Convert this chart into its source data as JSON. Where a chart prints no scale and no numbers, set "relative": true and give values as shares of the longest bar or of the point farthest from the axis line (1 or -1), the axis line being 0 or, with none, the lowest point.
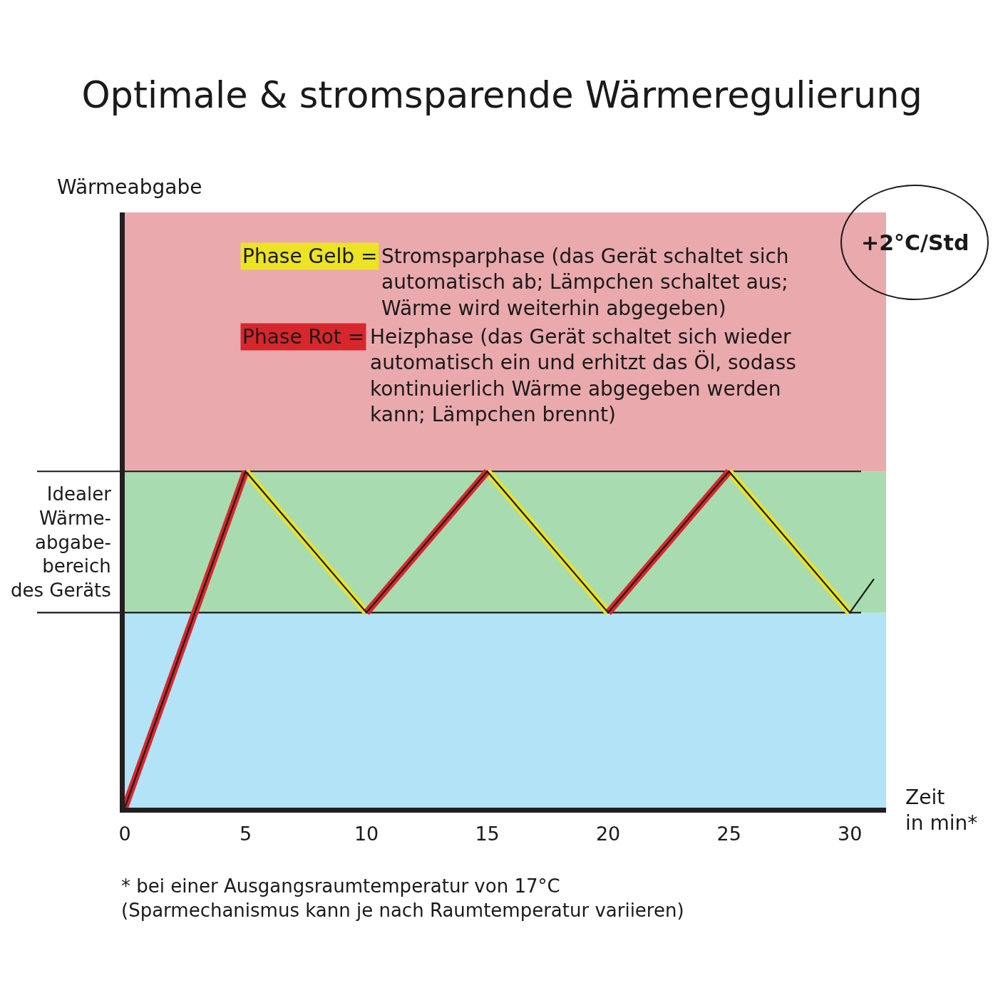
{
  "chart_data": {
    "type": "line",
    "title": "Optimale & stromsparende Wärmeregulierung",
    "xlabel": "Zeit\nin min*",
    "relative": true,
    "xlim": [
      0,
      31.5
    ],
    "xticks": [
      0,
      5,
      10,
      15,
      20,
      25,
      30
    ],
    "series": [
      {
        "name": "Phase Gelb =",
        "color": "#ebe324",
        "x": [
          5,
          10,
          12.5,
          15,
          20,
          22.5,
          25,
          30
        ],
        "values": [
          1,
          0.58,
          null,
          1,
          0.58,
          null,
          1,
          0.58
        ]
      },
      {
        "name": "Phase Rot =",
        "color": "#d7262c",
        "x": [
          0,
          5,
          7.5,
          10,
          15,
          17.5,
          20,
          25
        ],
        "values": [
          0,
          1,
          null,
          0.58,
          1,
          null,
          0.58,
          1
        ]
      },
      {
        "color": "#1a1a1a",
        "x": [
          0,
          5,
          10,
          15,
          20,
          25,
          30,
          31
        ],
        "values": [
          0,
          1,
          0.58,
          1,
          0.58,
          1,
          0.58,
          0.68
        ]
      }
    ],
    "bands": [
      {
        "axis": "y",
        "from": 0,
        "to": 0.58,
        "color": "#b3e3f6"
      },
      {
        "axis": "y",
        "from": 0.58,
        "to": 1,
        "color": "#a8dcb0",
        "label": "Idealer\nWärme-\nabgabe-\nbereich\ndes Geräts"
      },
      {
        "axis": "y",
        "from": 1,
        "to": 1.77,
        "color": "#eaa9ad"
      }
    ],
    "ref_lines": [
      {
        "axis": "y",
        "value": 0.58,
        "color": "#1a1a1a"
      },
      {
        "axis": "y",
        "value": 1,
        "color": "#1a1a1a"
      }
    ],
    "annotations": [
      "Stromsparphase (das Gerät schaltet sich\nautomatisch ab; Lämpchen schaltet aus;\nWärme wird weiterhin abgegeben)",
      "Heizphase (das Gerät schaltet sich wieder\nautomatisch ein und erhitzt das Öl, sodass\nkontinuierlich Wärme abgegeben werden\nkann; Lämpchen brennt)",
      "Wärmeabgabe",
      "+2°C/Std",
      "* bei einer Ausgangsraumtemperatur von 17°C\n(Sparmechanismus kann je nach Raumtemperatur variieren)"
    ],
    "legend": "top"
  }
}
